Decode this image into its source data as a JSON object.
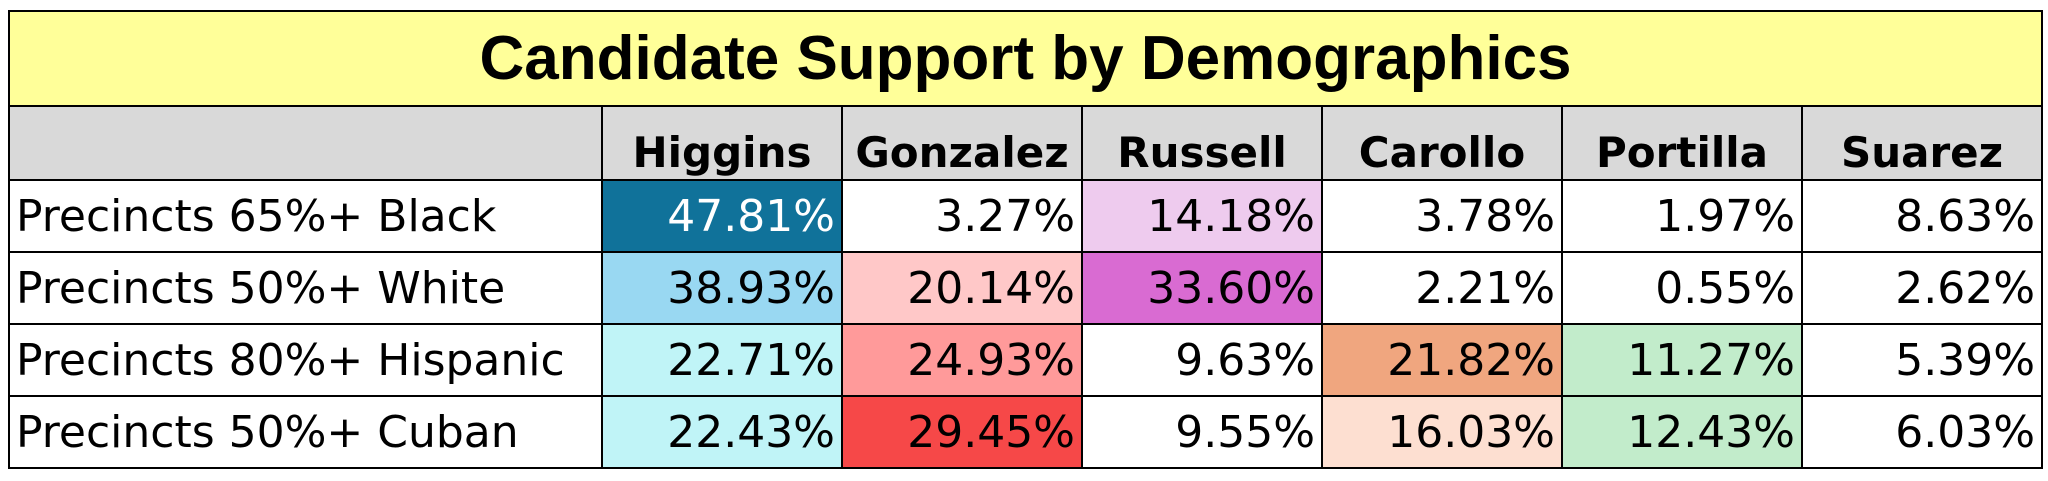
{
  "chart_data": {
    "type": "table",
    "title": "Candidate Support by Demographics",
    "columns": [
      "Higgins",
      "Gonzalez",
      "Russell",
      "Carollo",
      "Portilla",
      "Suarez"
    ],
    "rows": [
      {
        "label": "Precincts 65%+ Black",
        "values": [
          "47.81%",
          "3.27%",
          "14.18%",
          "3.78%",
          "1.97%",
          "8.63%"
        ],
        "colors": [
          "#10729a",
          "#ffffff",
          "#eecbee",
          "#ffffff",
          "#ffffff",
          "#ffffff"
        ],
        "text_colors": [
          "#ffffff",
          "#000000",
          "#000000",
          "#000000",
          "#000000",
          "#000000"
        ]
      },
      {
        "label": "Precincts 50%+ White",
        "values": [
          "38.93%",
          "20.14%",
          "33.60%",
          "2.21%",
          "0.55%",
          "2.62%"
        ],
        "colors": [
          "#99d8f2",
          "#ffc8c8",
          "#d96bd2",
          "#ffffff",
          "#ffffff",
          "#ffffff"
        ],
        "text_colors": [
          "#000000",
          "#000000",
          "#000000",
          "#000000",
          "#000000",
          "#000000"
        ]
      },
      {
        "label": "Precincts 80%+ Hispanic",
        "values": [
          "22.71%",
          "24.93%",
          "9.63%",
          "21.82%",
          "11.27%",
          "5.39%"
        ],
        "colors": [
          "#c0f4f7",
          "#ff9a9a",
          "#ffffff",
          "#f0a67f",
          "#c2eccb",
          "#ffffff"
        ],
        "text_colors": [
          "#000000",
          "#000000",
          "#000000",
          "#000000",
          "#000000",
          "#000000"
        ]
      },
      {
        "label": "Precincts 50%+ Cuban",
        "values": [
          "22.43%",
          "29.45%",
          "9.55%",
          "16.03%",
          "12.43%",
          "6.03%"
        ],
        "colors": [
          "#c0f4f7",
          "#f64848",
          "#ffffff",
          "#fddfd1",
          "#c2eccb",
          "#ffffff"
        ],
        "text_colors": [
          "#000000",
          "#000000",
          "#000000",
          "#000000",
          "#000000",
          "#000000"
        ]
      }
    ]
  }
}
